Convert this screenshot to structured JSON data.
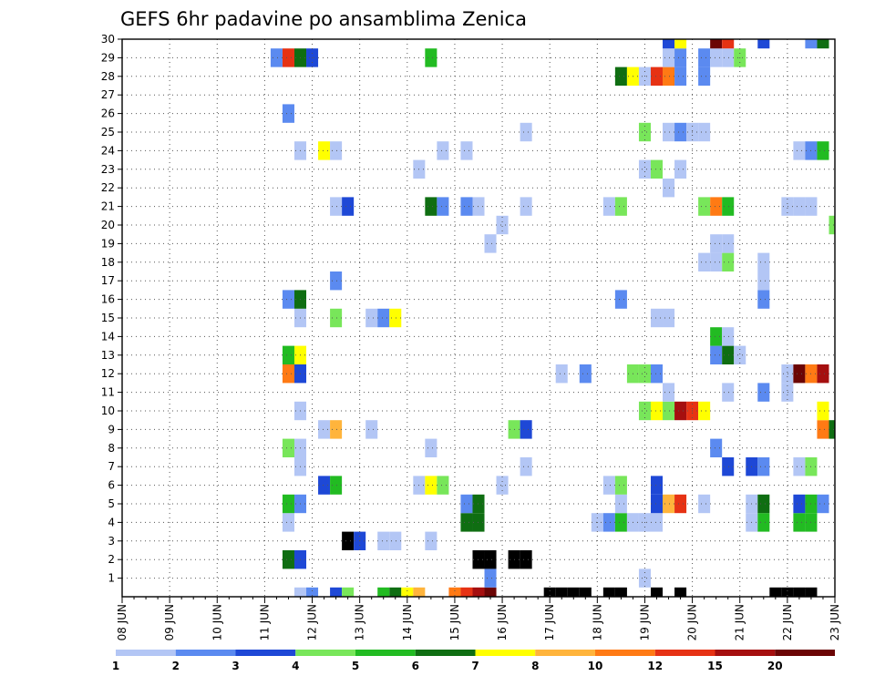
{
  "chart_data": {
    "type": "heatmap",
    "title": "GEFS 6hr padavine po ansamblima Zenica",
    "y_ticks": [
      "1",
      "2",
      "3",
      "4",
      "5",
      "6",
      "7",
      "8",
      "9",
      "10",
      "11",
      "12",
      "13",
      "14",
      "15",
      "16",
      "17",
      "18",
      "19",
      "20",
      "21",
      "22",
      "23",
      "24",
      "25",
      "26",
      "27",
      "28",
      "29",
      "30"
    ],
    "x_ticks": [
      "08 JUN",
      "09 JUN",
      "10 JUN",
      "11 JUN",
      "12 JUN",
      "13 JUN",
      "14 JUN",
      "15 JUN",
      "16 JUN",
      "17 JUN",
      "18 JUN",
      "19 JUN",
      "20 JUN",
      "21 JUN",
      "22 JUN",
      "23 JUN"
    ],
    "x_steps_per_day": 4,
    "x_range_steps": [
      0,
      60
    ],
    "y_range": [
      0,
      30
    ],
    "grid": true,
    "color_scale": {
      "labels": [
        "1",
        "2",
        "3",
        "4",
        "5",
        "6",
        "7",
        "8",
        "10",
        "12",
        "15",
        "20"
      ],
      "colors": [
        "#b3c6f5",
        "#5b8af0",
        "#1e48d6",
        "#78e65a",
        "#22bb22",
        "#0f6e12",
        "#ffff00",
        "#ffb43c",
        "#ff7a14",
        "#e63214",
        "#a50f0f",
        "#6b0505"
      ]
    },
    "cells": [
      [
        15,
        0,
        1
      ],
      [
        16,
        0,
        2
      ],
      [
        18,
        0,
        3
      ],
      [
        19,
        0,
        4
      ],
      [
        22,
        0,
        5
      ],
      [
        23,
        0,
        6
      ],
      [
        24,
        0,
        7
      ],
      [
        25,
        0,
        8
      ],
      [
        28,
        0,
        9
      ],
      [
        29,
        0,
        10
      ],
      [
        30,
        0,
        11
      ],
      [
        31,
        0,
        12
      ],
      [
        36,
        0,
        13
      ],
      [
        37,
        0,
        14
      ],
      [
        38,
        0,
        15
      ],
      [
        39,
        0,
        16
      ],
      [
        41,
        0,
        17
      ],
      [
        42,
        0,
        18
      ],
      [
        45,
        0,
        19
      ],
      [
        47,
        0,
        20
      ],
      [
        55,
        0,
        21
      ],
      [
        56,
        0,
        22
      ],
      [
        57,
        0,
        23
      ],
      [
        58,
        0,
        24
      ],
      [
        44,
        1,
        1
      ],
      [
        31,
        1,
        2
      ],
      [
        14,
        2,
        6
      ],
      [
        15,
        2,
        3
      ],
      [
        30,
        2,
        16
      ],
      [
        31,
        2,
        17
      ],
      [
        33,
        2,
        18
      ],
      [
        34,
        2,
        19
      ],
      [
        19,
        3,
        20
      ],
      [
        20,
        3,
        3
      ],
      [
        22,
        3,
        1
      ],
      [
        23,
        3,
        1
      ],
      [
        26,
        3,
        1
      ],
      [
        14,
        4,
        1
      ],
      [
        29,
        4,
        30
      ],
      [
        30,
        4,
        30
      ],
      [
        40,
        4,
        1
      ],
      [
        41,
        4,
        2
      ],
      [
        42,
        4,
        5
      ],
      [
        43,
        4,
        1
      ],
      [
        44,
        4,
        1
      ],
      [
        45,
        4,
        1
      ],
      [
        53,
        4,
        1
      ],
      [
        54,
        4,
        5
      ],
      [
        57,
        4,
        31
      ],
      [
        58,
        4,
        31
      ],
      [
        14,
        5,
        5
      ],
      [
        15,
        5,
        2
      ],
      [
        29,
        5,
        2
      ],
      [
        30,
        5,
        6
      ],
      [
        42,
        5,
        1
      ],
      [
        45,
        5,
        3
      ],
      [
        46,
        5,
        8
      ],
      [
        47,
        5,
        10
      ],
      [
        49,
        5,
        1
      ],
      [
        53,
        5,
        1
      ],
      [
        54,
        5,
        6
      ],
      [
        57,
        5,
        3
      ],
      [
        58,
        5,
        5
      ],
      [
        59,
        5,
        2
      ],
      [
        17,
        6,
        3
      ],
      [
        18,
        6,
        5
      ],
      [
        25,
        6,
        1
      ],
      [
        26,
        6,
        7
      ],
      [
        27,
        6,
        4
      ],
      [
        32,
        6,
        1
      ],
      [
        41,
        6,
        1
      ],
      [
        42,
        6,
        4
      ],
      [
        45,
        6,
        3
      ],
      [
        15,
        7,
        1
      ],
      [
        34,
        7,
        1
      ],
      [
        51,
        7,
        3
      ],
      [
        53,
        7,
        3
      ],
      [
        54,
        7,
        2
      ],
      [
        57,
        7,
        1
      ],
      [
        58,
        7,
        4
      ],
      [
        14,
        8,
        4
      ],
      [
        15,
        8,
        1
      ],
      [
        26,
        8,
        1
      ],
      [
        50,
        8,
        2
      ],
      [
        17,
        9,
        1
      ],
      [
        18,
        9,
        8
      ],
      [
        21,
        9,
        1
      ],
      [
        33,
        9,
        4
      ],
      [
        34,
        9,
        3
      ],
      [
        59,
        9,
        9
      ],
      [
        60,
        9,
        6
      ],
      [
        15,
        10,
        1
      ],
      [
        44,
        10,
        4
      ],
      [
        45,
        10,
        7
      ],
      [
        46,
        10,
        4
      ],
      [
        47,
        10,
        11
      ],
      [
        48,
        10,
        10
      ],
      [
        49,
        10,
        7
      ],
      [
        59,
        10,
        7
      ],
      [
        46,
        11,
        1
      ],
      [
        51,
        11,
        1
      ],
      [
        54,
        11,
        2
      ],
      [
        56,
        11,
        1
      ],
      [
        14,
        12,
        9
      ],
      [
        15,
        12,
        3
      ],
      [
        37,
        12,
        1
      ],
      [
        39,
        12,
        2
      ],
      [
        43,
        12,
        4
      ],
      [
        44,
        12,
        4
      ],
      [
        45,
        12,
        2
      ],
      [
        56,
        12,
        1
      ],
      [
        57,
        12,
        12
      ],
      [
        58,
        12,
        9
      ],
      [
        59,
        12,
        11
      ],
      [
        14,
        13,
        5
      ],
      [
        15,
        13,
        7
      ],
      [
        50,
        13,
        2
      ],
      [
        51,
        13,
        6
      ],
      [
        52,
        13,
        1
      ],
      [
        50,
        14,
        5
      ],
      [
        51,
        14,
        1
      ],
      [
        15,
        15,
        1
      ],
      [
        18,
        15,
        4
      ],
      [
        21,
        15,
        1
      ],
      [
        22,
        15,
        2
      ],
      [
        23,
        15,
        7
      ],
      [
        45,
        15,
        1
      ],
      [
        46,
        15,
        1
      ],
      [
        14,
        16,
        2
      ],
      [
        15,
        16,
        6
      ],
      [
        42,
        16,
        2
      ],
      [
        54,
        16,
        2
      ],
      [
        18,
        17,
        2
      ],
      [
        54,
        17,
        1
      ],
      [
        49,
        18,
        1
      ],
      [
        50,
        18,
        1
      ],
      [
        51,
        18,
        4
      ],
      [
        54,
        18,
        1
      ],
      [
        31,
        19,
        1
      ],
      [
        50,
        19,
        1
      ],
      [
        51,
        19,
        1
      ],
      [
        32,
        20,
        1
      ],
      [
        60,
        20,
        4
      ],
      [
        18,
        21,
        1
      ],
      [
        19,
        21,
        3
      ],
      [
        26,
        21,
        6
      ],
      [
        27,
        21,
        2
      ],
      [
        29,
        21,
        2
      ],
      [
        30,
        21,
        1
      ],
      [
        34,
        21,
        1
      ],
      [
        41,
        21,
        1
      ],
      [
        42,
        21,
        4
      ],
      [
        49,
        21,
        4
      ],
      [
        50,
        21,
        9
      ],
      [
        51,
        21,
        5
      ],
      [
        56,
        21,
        1
      ],
      [
        57,
        21,
        1
      ],
      [
        58,
        21,
        1
      ],
      [
        46,
        22,
        1
      ],
      [
        25,
        23,
        1
      ],
      [
        44,
        23,
        1
      ],
      [
        45,
        23,
        4
      ],
      [
        47,
        23,
        1
      ],
      [
        15,
        24,
        1
      ],
      [
        17,
        24,
        7
      ],
      [
        18,
        24,
        1
      ],
      [
        27,
        24,
        1
      ],
      [
        29,
        24,
        1
      ],
      [
        57,
        24,
        1
      ],
      [
        58,
        24,
        2
      ],
      [
        59,
        24,
        5
      ],
      [
        34,
        25,
        1
      ],
      [
        44,
        25,
        4
      ],
      [
        46,
        25,
        1
      ],
      [
        47,
        25,
        2
      ],
      [
        48,
        25,
        1
      ],
      [
        49,
        25,
        1
      ],
      [
        14,
        26,
        2
      ],
      [
        42,
        28,
        6
      ],
      [
        43,
        28,
        7
      ],
      [
        44,
        28,
        1
      ],
      [
        45,
        28,
        10
      ],
      [
        46,
        28,
        9
      ],
      [
        47,
        28,
        2
      ],
      [
        49,
        28,
        2
      ],
      [
        13,
        29,
        2
      ],
      [
        14,
        29,
        10
      ],
      [
        15,
        29,
        6
      ],
      [
        16,
        29,
        3
      ],
      [
        26,
        29,
        5
      ],
      [
        46,
        29,
        1
      ],
      [
        47,
        29,
        2
      ],
      [
        49,
        29,
        2
      ],
      [
        50,
        29,
        1
      ],
      [
        51,
        29,
        1
      ],
      [
        52,
        29,
        4
      ],
      [
        46,
        30,
        3
      ],
      [
        47,
        30,
        7
      ],
      [
        50,
        30,
        12
      ],
      [
        51,
        30,
        10
      ],
      [
        54,
        30,
        3
      ],
      [
        58,
        30,
        2
      ],
      [
        59,
        30,
        6
      ]
    ]
  }
}
